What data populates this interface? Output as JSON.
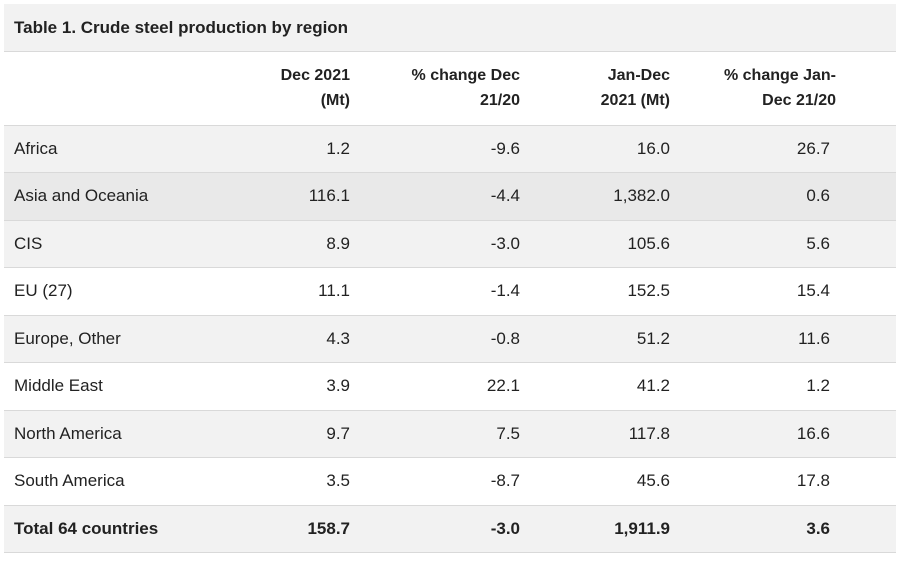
{
  "table": {
    "caption": "Table 1. Crude steel production by region",
    "headers": [
      "",
      [
        "Dec 2021",
        "(Mt)"
      ],
      [
        "% change Dec",
        "21/20"
      ],
      [
        "Jan-Dec",
        "2021 (Mt)"
      ],
      [
        "% change Jan-",
        "Dec 21/20"
      ]
    ],
    "rows": [
      {
        "region": "Africa",
        "dec_2021": "1.2",
        "pct_dec": "-9.6",
        "jan_dec": "16.0",
        "pct_jan_dec": "26.7"
      },
      {
        "region": "Asia and Oceania",
        "dec_2021": "116.1",
        "pct_dec": "-4.4",
        "jan_dec": "1,382.0",
        "pct_jan_dec": "0.6"
      },
      {
        "region": "CIS",
        "dec_2021": "8.9",
        "pct_dec": "-3.0",
        "jan_dec": "105.6",
        "pct_jan_dec": "5.6"
      },
      {
        "region": "EU (27)",
        "dec_2021": "11.1",
        "pct_dec": "-1.4",
        "jan_dec": "152.5",
        "pct_jan_dec": "15.4"
      },
      {
        "region": "Europe, Other",
        "dec_2021": "4.3",
        "pct_dec": "-0.8",
        "jan_dec": "51.2",
        "pct_jan_dec": "11.6"
      },
      {
        "region": "Middle East",
        "dec_2021": "3.9",
        "pct_dec": "22.1",
        "jan_dec": "41.2",
        "pct_jan_dec": "1.2"
      },
      {
        "region": "North America",
        "dec_2021": "9.7",
        "pct_dec": "7.5",
        "jan_dec": "117.8",
        "pct_jan_dec": "16.6"
      },
      {
        "region": "South America",
        "dec_2021": "3.5",
        "pct_dec": "-8.7",
        "jan_dec": "45.6",
        "pct_jan_dec": "17.8"
      },
      {
        "region": "Total 64 countries",
        "dec_2021": "158.7",
        "pct_dec": "-3.0",
        "jan_dec": "1,911.9",
        "pct_jan_dec": "3.6"
      }
    ]
  },
  "colors": {
    "caption_bg": "#f2f2f2",
    "row_shaded": "#f2f2f2",
    "row_white": "#ffffff",
    "row_hover": "#e9e9e9",
    "border": "#d9d9d9",
    "text": "#222222"
  }
}
